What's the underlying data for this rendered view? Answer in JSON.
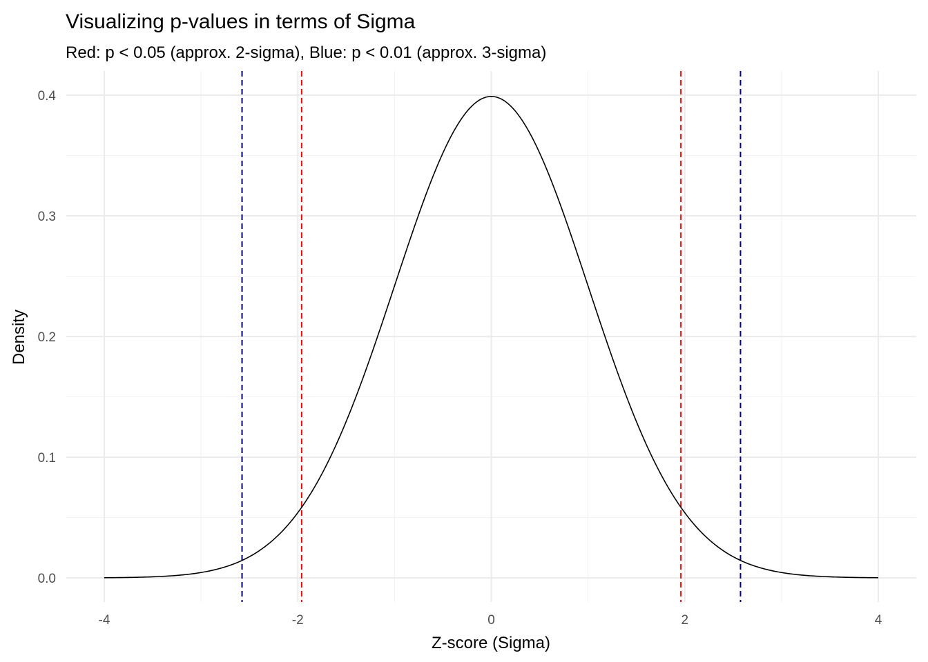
{
  "chart_data": {
    "type": "line",
    "title": "Visualizing p-values in terms of Sigma",
    "subtitle": "Red: p < 0.05 (approx. 2-sigma), Blue: p < 0.01 (approx. 3-sigma)",
    "xlabel": "Z-score (Sigma)",
    "ylabel": "Density",
    "xlim": [
      -4,
      4
    ],
    "ylim": [
      0,
      0.4
    ],
    "x_ticks": [
      -4,
      -2,
      0,
      2,
      4
    ],
    "x_tick_labels": [
      "-4",
      "-2",
      "0",
      "2",
      "4"
    ],
    "y_ticks": [
      0,
      0.1,
      0.2,
      0.3,
      0.4
    ],
    "y_tick_labels": [
      "0.0",
      "0.1",
      "0.2",
      "0.3",
      "0.4"
    ],
    "grid": true,
    "series": [
      {
        "distribution": "standard normal density",
        "mean": 0,
        "sd": 1,
        "x_range": [
          -4,
          4
        ],
        "color": "#000000"
      }
    ],
    "reference_lines": [
      {
        "x": -2.576,
        "color": "#00008B",
        "style": "dashed"
      },
      {
        "x": -1.96,
        "color": "#FF0000",
        "style": "dashed"
      },
      {
        "x": 1.96,
        "color": "#FF0000",
        "style": "dashed"
      },
      {
        "x": 2.576,
        "color": "#00008B",
        "style": "dashed"
      }
    ]
  }
}
